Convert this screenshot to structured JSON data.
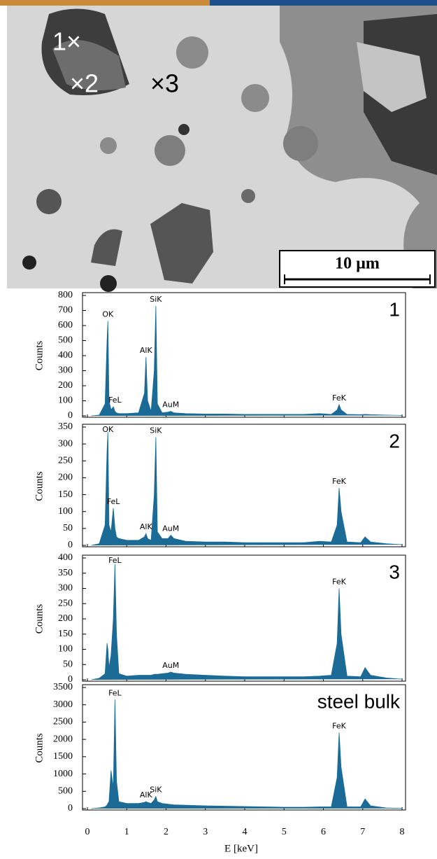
{
  "image": {
    "markers": [
      "1×",
      "×2",
      "×3"
    ],
    "scale_bar": "10 µm"
  },
  "chart_data": [
    {
      "type": "area",
      "title": "1",
      "ylabel": "Counts",
      "color": "#1b6b96",
      "x": [
        0.1,
        0.3,
        0.45,
        0.5,
        0.52,
        0.55,
        0.6,
        0.66,
        0.7,
        0.74,
        0.8,
        1.0,
        1.3,
        1.45,
        1.49,
        1.53,
        1.62,
        1.7,
        1.74,
        1.78,
        1.9,
        2.05,
        2.12,
        2.2,
        2.5,
        3,
        3.5,
        4,
        4.5,
        5,
        5.5,
        5.9,
        6.2,
        6.35,
        6.4,
        6.45,
        6.6,
        6.95,
        7.06,
        7.2,
        7.6,
        8
      ],
      "values": [
        0,
        5,
        80,
        500,
        630,
        100,
        40,
        60,
        30,
        20,
        15,
        15,
        20,
        150,
        390,
        100,
        30,
        300,
        730,
        80,
        20,
        25,
        30,
        20,
        15,
        12,
        12,
        10,
        10,
        10,
        10,
        15,
        10,
        40,
        75,
        40,
        10,
        8,
        10,
        8,
        5,
        3
      ],
      "xlim": [
        0,
        8
      ],
      "xticks": [
        0,
        1,
        2,
        3,
        4,
        5,
        6,
        7,
        8
      ],
      "show_xtick_labels": false,
      "ylim": [
        0,
        800
      ],
      "yticks": [
        0,
        100,
        200,
        300,
        400,
        500,
        600,
        700,
        800
      ],
      "annotations": [
        {
          "text": "OK",
          "x": 0.52,
          "y": 630
        },
        {
          "text": "FeL",
          "x": 0.7,
          "y": 60
        },
        {
          "text": "AlK",
          "x": 1.49,
          "y": 390
        },
        {
          "text": "SiK",
          "x": 1.74,
          "y": 730
        },
        {
          "text": "AuM",
          "x": 2.12,
          "y": 30
        },
        {
          "text": "FeK",
          "x": 6.4,
          "y": 75
        }
      ]
    },
    {
      "type": "area",
      "title": "2",
      "ylabel": "Counts",
      "color": "#1b6b96",
      "x": [
        0.1,
        0.3,
        0.45,
        0.5,
        0.52,
        0.55,
        0.6,
        0.66,
        0.7,
        0.74,
        0.8,
        1.0,
        1.3,
        1.45,
        1.49,
        1.53,
        1.62,
        1.7,
        1.74,
        1.78,
        1.9,
        2.05,
        2.12,
        2.2,
        2.5,
        3,
        3.5,
        4,
        4.5,
        5,
        5.5,
        5.9,
        6.2,
        6.35,
        6.4,
        6.45,
        6.6,
        6.95,
        7.06,
        7.2,
        7.6,
        8
      ],
      "values": [
        0,
        5,
        60,
        280,
        335,
        60,
        40,
        110,
        50,
        25,
        20,
        15,
        15,
        25,
        35,
        20,
        15,
        150,
        320,
        40,
        20,
        20,
        30,
        20,
        12,
        10,
        10,
        8,
        8,
        8,
        8,
        12,
        10,
        60,
        170,
        100,
        10,
        8,
        25,
        10,
        5,
        2
      ],
      "xlim": [
        0,
        8
      ],
      "xticks": [
        0,
        1,
        2,
        3,
        4,
        5,
        6,
        7,
        8
      ],
      "show_xtick_labels": false,
      "ylim": [
        0,
        350
      ],
      "yticks": [
        0,
        50,
        100,
        150,
        200,
        250,
        300,
        350
      ],
      "annotations": [
        {
          "text": "OK",
          "x": 0.52,
          "y": 335
        },
        {
          "text": "FeL",
          "x": 0.66,
          "y": 110
        },
        {
          "text": "AlK",
          "x": 1.49,
          "y": 35
        },
        {
          "text": "SiK",
          "x": 1.74,
          "y": 320
        },
        {
          "text": "AuM",
          "x": 2.12,
          "y": 30
        },
        {
          "text": "FeK",
          "x": 6.4,
          "y": 170
        }
      ]
    },
    {
      "type": "area",
      "title": "3",
      "ylabel": "Counts",
      "color": "#1b6b96",
      "x": [
        0.1,
        0.3,
        0.45,
        0.5,
        0.52,
        0.55,
        0.6,
        0.66,
        0.7,
        0.74,
        0.8,
        1.0,
        1.3,
        1.45,
        1.49,
        1.53,
        1.62,
        1.7,
        1.74,
        1.78,
        1.9,
        2.05,
        2.12,
        2.2,
        2.5,
        3,
        3.5,
        4,
        4.5,
        5,
        5.5,
        5.9,
        6.2,
        6.35,
        6.4,
        6.45,
        6.6,
        6.95,
        7.06,
        7.2,
        7.6,
        8
      ],
      "values": [
        0,
        5,
        20,
        120,
        100,
        40,
        80,
        200,
        380,
        150,
        20,
        12,
        15,
        15,
        15,
        15,
        15,
        18,
        18,
        18,
        20,
        22,
        25,
        22,
        18,
        15,
        12,
        10,
        10,
        10,
        10,
        12,
        15,
        120,
        300,
        150,
        12,
        10,
        40,
        15,
        6,
        2
      ],
      "xlim": [
        0,
        8
      ],
      "xticks": [
        0,
        1,
        2,
        3,
        4,
        5,
        6,
        7,
        8
      ],
      "show_xtick_labels": false,
      "ylim": [
        0,
        400
      ],
      "yticks": [
        0,
        50,
        100,
        150,
        200,
        250,
        300,
        350,
        400
      ],
      "annotations": [
        {
          "text": "FeL",
          "x": 0.7,
          "y": 380
        },
        {
          "text": "AuM",
          "x": 2.12,
          "y": 25
        },
        {
          "text": "FeK",
          "x": 6.4,
          "y": 300
        }
      ]
    },
    {
      "type": "area",
      "title": "steel bulk",
      "ylabel": "Counts",
      "xlabel": "E [keV]",
      "color": "#1b6b96",
      "x": [
        0.1,
        0.3,
        0.45,
        0.5,
        0.52,
        0.55,
        0.6,
        0.66,
        0.7,
        0.74,
        0.8,
        1.0,
        1.3,
        1.45,
        1.49,
        1.53,
        1.62,
        1.7,
        1.74,
        1.78,
        1.9,
        2.05,
        2.12,
        2.2,
        2.5,
        3,
        3.5,
        4,
        4.5,
        5,
        5.5,
        5.9,
        6.2,
        6.35,
        6.4,
        6.45,
        6.6,
        6.95,
        7.06,
        7.2,
        7.6,
        8
      ],
      "values": [
        0,
        20,
        50,
        100,
        150,
        200,
        1100,
        600,
        3150,
        800,
        200,
        150,
        150,
        180,
        200,
        180,
        150,
        250,
        350,
        200,
        150,
        130,
        120,
        110,
        100,
        80,
        70,
        60,
        50,
        40,
        40,
        50,
        50,
        900,
        2200,
        1200,
        50,
        50,
        280,
        80,
        20,
        5
      ],
      "xlim": [
        0,
        8
      ],
      "xticks": [
        0,
        1,
        2,
        3,
        4,
        5,
        6,
        7,
        8
      ],
      "show_xtick_labels": true,
      "ylim": [
        0,
        3500
      ],
      "yticks": [
        0,
        500,
        1000,
        1500,
        2000,
        2500,
        3000,
        3500
      ],
      "annotations": [
        {
          "text": "FeL",
          "x": 0.7,
          "y": 3150
        },
        {
          "text": "AlK",
          "x": 1.49,
          "y": 200
        },
        {
          "text": "SiK",
          "x": 1.74,
          "y": 350
        },
        {
          "text": "FeK",
          "x": 6.4,
          "y": 2200
        }
      ]
    }
  ]
}
